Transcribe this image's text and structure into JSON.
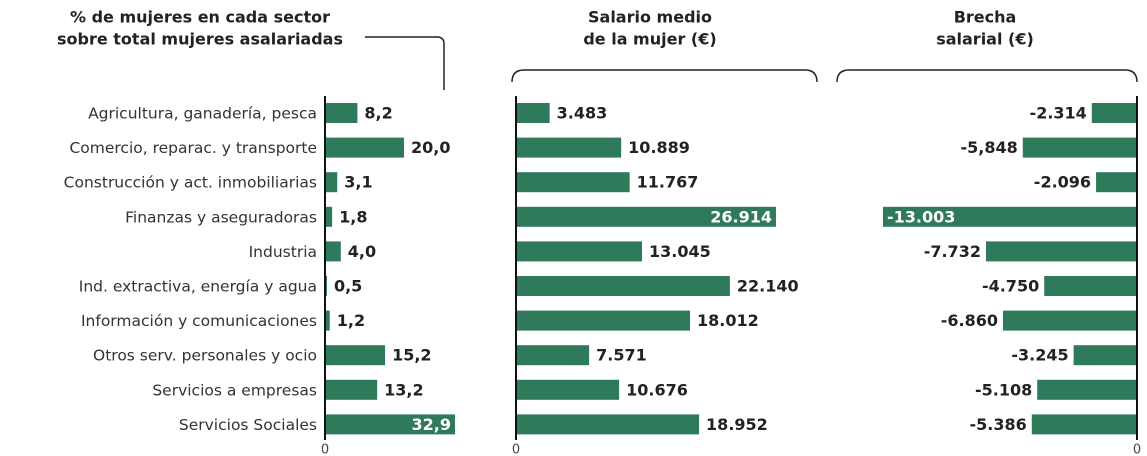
{
  "chart_data": [
    {
      "type": "bar",
      "orientation": "horizontal",
      "title": [
        "% de mujeres en cada sector",
        "sobre total mujeres asalariadas"
      ],
      "categories": [
        "Agricultura, ganadería, pesca",
        "Comercio, reparac. y transporte",
        "Construcción y act. inmobiliarias",
        "Finanzas y aseguradoras",
        "Industria",
        "Ind. extractiva, energía y agua",
        "Información y comunicaciones",
        "Otros serv. personales y ocio",
        "Servicios a empresas",
        "Servicios Sociales"
      ],
      "values": [
        8.2,
        20.0,
        3.1,
        1.8,
        4.0,
        0.5,
        1.2,
        15.2,
        13.2,
        32.9
      ],
      "value_labels": [
        "8,2",
        "20,0",
        "3,1",
        "1,8",
        "4,0",
        "0,5",
        "1,2",
        "15,2",
        "13,2",
        "32,9"
      ],
      "color": "#2e7a5b",
      "xlim": [
        0,
        33
      ],
      "xticks": [
        0
      ]
    },
    {
      "type": "bar",
      "orientation": "horizontal",
      "title": [
        "Salario medio",
        "de la mujer (€)"
      ],
      "values": [
        3483,
        10889,
        11767,
        26914,
        13045,
        22140,
        18012,
        7571,
        10676,
        18952
      ],
      "value_labels": [
        "3.483",
        "10.889",
        "11.767",
        "26.914",
        "13.045",
        "22.140",
        "18.012",
        "7.571",
        "10.676",
        "18.952"
      ],
      "color": "#2e7a5b",
      "xlim": [
        0,
        27000
      ],
      "xticks": [
        0
      ]
    },
    {
      "type": "bar",
      "orientation": "horizontal",
      "title": [
        "Brecha",
        "salarial (€)"
      ],
      "values": [
        -2314,
        -5848,
        -2096,
        -13003,
        -7732,
        -4750,
        -6860,
        -3245,
        -5108,
        -5386
      ],
      "value_labels": [
        "-2.314",
        "-5,848",
        "-2.096",
        "-13.003",
        "-7.732",
        "-4.750",
        "-6.860",
        "-3.245",
        "-5.108",
        "-5.386"
      ],
      "color": "#2e7a5b",
      "xlim": [
        -13500,
        0
      ],
      "xticks": [
        0
      ]
    }
  ]
}
